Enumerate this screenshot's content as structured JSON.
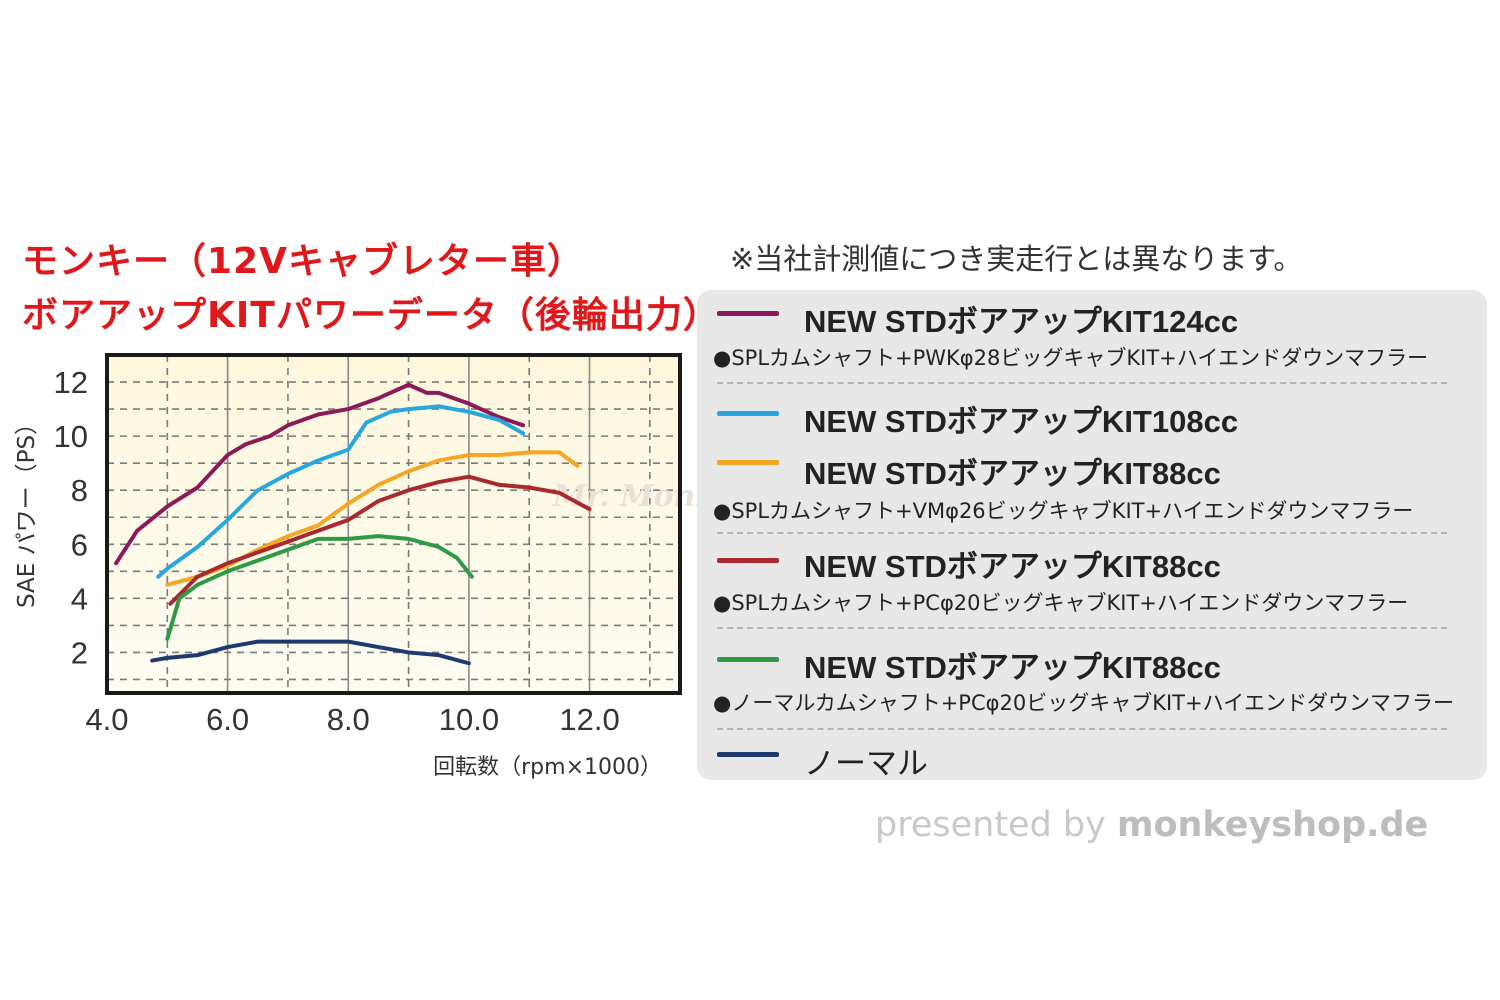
{
  "title_line1": "モンキー（12Vキャブレター車）",
  "title_line2": "ボアアップKITパワーデータ（後輪出力）",
  "note": "※当社計測値につき実走行とは異なります。",
  "legend": {
    "items": [
      {
        "title": "NEW STDボアアップKIT124cc",
        "subtitle": "●SPLカムシャフト+PWKφ28ビッグキャブKIT+ハイエンドダウンマフラー",
        "color": "#8b1a5a"
      },
      {
        "title": "NEW STDボアアップKIT108cc",
        "subtitle": "",
        "color": "#27a7e0"
      },
      {
        "title": "NEW STDボアアップKIT88cc",
        "subtitle": "●SPLカムシャフト+VMφ26ビッグキャブKIT+ハイエンドダウンマフラー",
        "color": "#f5a623"
      },
      {
        "title": "NEW STDボアアップKIT88cc",
        "subtitle": "●SPLカムシャフト+PCφ20ビッグキャブKIT+ハイエンドダウンマフラー",
        "color": "#a8292e"
      },
      {
        "title": "NEW STDボアアップKIT88cc",
        "subtitle": "●ノーマルカムシャフト+PCφ20ビッグキャブKIT+ハイエンドダウンマフラー",
        "color": "#2e9a47"
      },
      {
        "title": "ノーマル",
        "subtitle": "",
        "color": "#1f3a6e"
      }
    ]
  },
  "credit": {
    "prefix": "presented by ",
    "brand": "monkeyshop.de"
  },
  "watermark": "Mr. Monkey & Dr. Dax",
  "chart_data": {
    "type": "line",
    "title": "",
    "xlabel": "回転数（rpm×1000）",
    "ylabel": "SAE パワー（PS）",
    "xlim": [
      4.0,
      13.5
    ],
    "ylim": [
      0.5,
      13
    ],
    "x_ticks": [
      "4.0",
      "6.0",
      "8.0",
      "10.0",
      "12.0"
    ],
    "x_tick_values": [
      4,
      6,
      8,
      10,
      12
    ],
    "y_ticks": [
      "2",
      "4",
      "6",
      "8",
      "10",
      "12"
    ],
    "y_tick_values": [
      2,
      4,
      6,
      8,
      10,
      12
    ],
    "grid": true,
    "series": [
      {
        "name": "NEW STDボアアップKIT124cc",
        "color": "#8b1a5a",
        "x": [
          4.15,
          4.5,
          5.0,
          5.5,
          6.0,
          6.3,
          6.7,
          7.0,
          7.5,
          8.0,
          8.5,
          9.0,
          9.3,
          9.5,
          10.0,
          10.5,
          10.9
        ],
        "y": [
          5.3,
          6.5,
          7.4,
          8.1,
          9.3,
          9.7,
          10.0,
          10.4,
          10.8,
          11.0,
          11.4,
          11.9,
          11.6,
          11.6,
          11.2,
          10.7,
          10.4
        ]
      },
      {
        "name": "NEW STDボアアップKIT108cc",
        "color": "#27a7e0",
        "x": [
          4.85,
          5.0,
          5.5,
          6.0,
          6.5,
          7.0,
          7.5,
          8.0,
          8.3,
          8.7,
          9.0,
          9.5,
          10.0,
          10.5,
          10.9
        ],
        "y": [
          4.8,
          5.1,
          5.9,
          6.9,
          8.0,
          8.6,
          9.1,
          9.5,
          10.5,
          10.9,
          11.0,
          11.1,
          10.9,
          10.6,
          10.1
        ]
      },
      {
        "name": "NEW STDボアアップKIT88cc (VMφ26)",
        "color": "#f5a623",
        "x": [
          5.0,
          5.5,
          6.0,
          6.5,
          7.0,
          7.5,
          8.0,
          8.5,
          9.0,
          9.5,
          10.0,
          10.5,
          11.0,
          11.5,
          11.8
        ],
        "y": [
          4.5,
          4.8,
          5.2,
          5.8,
          6.3,
          6.7,
          7.5,
          8.2,
          8.7,
          9.1,
          9.3,
          9.3,
          9.4,
          9.4,
          8.9
        ]
      },
      {
        "name": "NEW STDボアアップKIT88cc (PCφ20)",
        "color": "#a8292e",
        "x": [
          5.05,
          5.5,
          6.0,
          6.5,
          7.0,
          7.5,
          8.0,
          8.5,
          9.0,
          9.5,
          10.0,
          10.5,
          11.0,
          11.5,
          12.0
        ],
        "y": [
          3.8,
          4.8,
          5.3,
          5.7,
          6.1,
          6.5,
          6.9,
          7.6,
          8.0,
          8.3,
          8.5,
          8.2,
          8.1,
          7.9,
          7.3
        ]
      },
      {
        "name": "NEW STDボアアップKIT88cc (ノーマルカム)",
        "color": "#2e9a47",
        "x": [
          5.0,
          5.2,
          5.5,
          6.0,
          6.5,
          7.0,
          7.5,
          8.0,
          8.5,
          9.0,
          9.5,
          9.8,
          10.05
        ],
        "y": [
          2.5,
          4.0,
          4.5,
          5.0,
          5.4,
          5.8,
          6.2,
          6.2,
          6.3,
          6.2,
          5.9,
          5.5,
          4.8
        ]
      },
      {
        "name": "ノーマル",
        "color": "#1f3a6e",
        "x": [
          4.75,
          5.0,
          5.5,
          6.0,
          6.5,
          7.0,
          7.5,
          8.0,
          8.5,
          9.0,
          9.5,
          10.0
        ],
        "y": [
          1.7,
          1.8,
          1.9,
          2.2,
          2.4,
          2.4,
          2.4,
          2.4,
          2.2,
          2.0,
          1.9,
          1.6
        ]
      }
    ]
  }
}
